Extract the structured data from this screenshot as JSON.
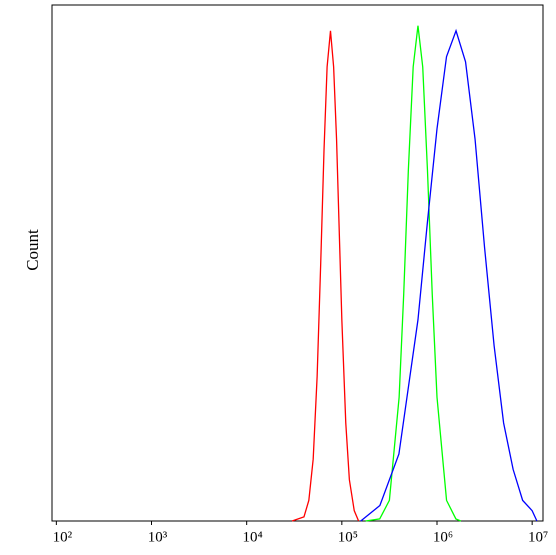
{
  "chart_data": {
    "type": "line",
    "ylabel": "Count",
    "xscale": "log",
    "xlim": [
      90,
      13000000
    ],
    "ylim": [
      0,
      100
    ],
    "xticks": [
      {
        "value": 100,
        "label": "10²"
      },
      {
        "value": 1000,
        "label": "10³"
      },
      {
        "value": 10000,
        "label": "10⁴"
      },
      {
        "value": 100000,
        "label": "10⁵"
      },
      {
        "value": 1000000,
        "label": "10⁶"
      },
      {
        "value": 10000000,
        "label": "10⁷"
      }
    ],
    "series": [
      {
        "color": "#ff0000",
        "x": [
          30000,
          40000,
          45000,
          50000,
          55000,
          60000,
          65000,
          70000,
          76000,
          82000,
          88000,
          95000,
          100000,
          110000,
          120000,
          135000,
          150000
        ],
        "values": [
          0,
          0.8,
          4,
          12,
          28,
          50,
          72,
          88,
          95,
          88,
          74,
          53,
          39,
          19,
          8,
          2,
          0
        ]
      },
      {
        "color": "#00ff00",
        "x": [
          178000,
          250000,
          316000,
          400000,
          447000,
          500000,
          562000,
          631000,
          708000,
          794000,
          891000,
          1000000,
          1260000,
          1580000,
          1780000
        ],
        "values": [
          0,
          0.4,
          4,
          24,
          44,
          68,
          88,
          96,
          88,
          68,
          44,
          24,
          4,
          0.4,
          0
        ]
      },
      {
        "color": "#0000ff",
        "x": [
          158000,
          251000,
          398000,
          631000,
          794000,
          1000000,
          1259000,
          1585000,
          1995000,
          2512000,
          3162000,
          3981000,
          5012000,
          6310000,
          7943000,
          10000000,
          11220000
        ],
        "values": [
          0,
          3,
          13,
          39,
          58,
          76,
          90,
          95,
          89,
          74,
          53,
          34,
          19,
          10,
          4,
          2,
          0
        ]
      }
    ]
  }
}
